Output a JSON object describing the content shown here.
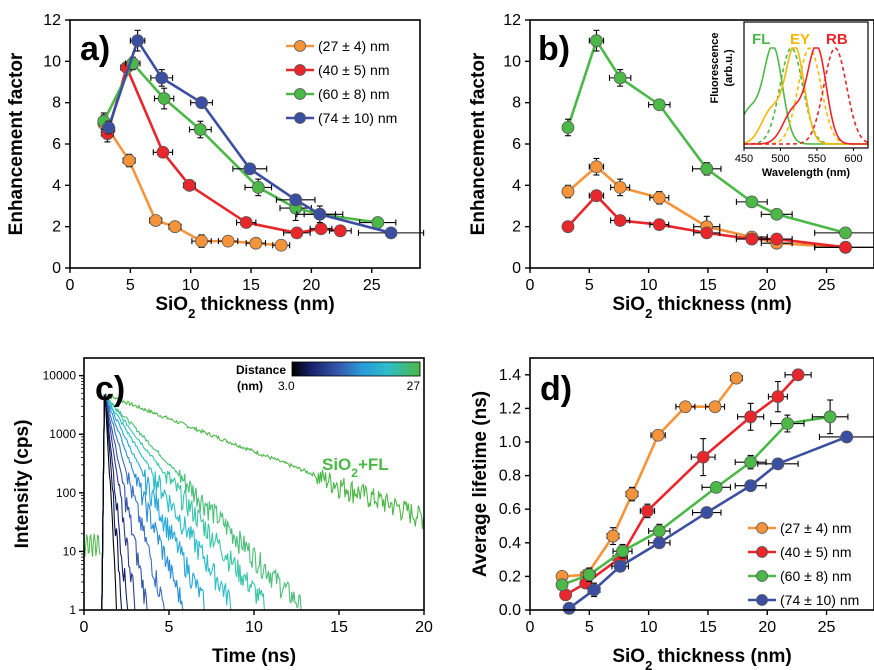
{
  "colors": {
    "orange": "#f7943a",
    "red": "#e8262b",
    "green": "#4cb848",
    "blue": "#3b4fa2"
  },
  "chart_data": [
    {
      "panel": "a)",
      "type": "line",
      "xlabel_main": "SiO",
      "xlabel_sub": "2",
      "xlabel_rest": " thickness (nm)",
      "ylabel": "Enhancement factor",
      "xlim": [
        0,
        29
      ],
      "ylim": [
        0,
        12
      ],
      "xticks": [
        0,
        5,
        10,
        15,
        20,
        25
      ],
      "yticks": [
        0,
        2,
        4,
        6,
        8,
        10,
        12
      ],
      "legend_position": "top-right",
      "series": [
        {
          "name": "(27 ± 4) nm",
          "color": "orange",
          "points": [
            [
              2.8,
              7.0,
              0.4,
              0.4
            ],
            [
              3.2,
              6.7,
              0.5,
              0.4
            ],
            [
              4.9,
              5.2,
              0.5,
              0.3
            ],
            [
              7.1,
              2.3,
              0.5,
              0.1
            ],
            [
              8.7,
              2.0,
              0.5,
              0.1
            ],
            [
              10.9,
              1.3,
              0.8,
              0.3
            ],
            [
              13.1,
              1.3,
              0.8,
              0.1
            ],
            [
              15.4,
              1.2,
              0.8,
              0.1
            ],
            [
              17.5,
              1.1,
              0.7,
              0.1
            ]
          ]
        },
        {
          "name": "(40 ± 5) nm",
          "color": "red",
          "points": [
            [
              3.1,
              6.5,
              0.5,
              0.4
            ],
            [
              4.7,
              9.7,
              0.5,
              0.2
            ],
            [
              7.7,
              5.6,
              0.8,
              0.2
            ],
            [
              9.9,
              4.0,
              0.5,
              0.1
            ],
            [
              14.6,
              2.2,
              0.8,
              0.1
            ],
            [
              18.8,
              1.7,
              1.1,
              0.1
            ],
            [
              20.8,
              1.9,
              0.9,
              0.1
            ],
            [
              22.4,
              1.8,
              0.9,
              0.1
            ]
          ]
        },
        {
          "name": "(60 ± 8) nm",
          "color": "green",
          "points": [
            [
              2.8,
              7.1,
              0.4,
              0.4
            ],
            [
              5.2,
              9.9,
              0.6,
              0.3
            ],
            [
              7.8,
              8.2,
              0.8,
              0.5
            ],
            [
              10.8,
              6.7,
              0.9,
              0.4
            ],
            [
              15.6,
              3.9,
              1.1,
              0.4
            ],
            [
              18.7,
              2.9,
              1.3,
              0.6
            ],
            [
              20.7,
              2.6,
              1.3,
              0.4
            ],
            [
              25.5,
              2.2,
              1.5,
              0.2
            ]
          ]
        },
        {
          "name": "(74 ± 10) nm",
          "color": "blue",
          "points": [
            [
              3.2,
              6.8,
              0.4,
              0.3
            ],
            [
              5.6,
              11.0,
              0.6,
              0.5
            ],
            [
              7.6,
              9.2,
              0.9,
              0.4
            ],
            [
              10.9,
              8.0,
              0.9,
              0.1
            ],
            [
              14.9,
              4.8,
              1.4,
              0.1
            ],
            [
              18.7,
              3.3,
              1.6,
              0.1
            ],
            [
              20.7,
              2.6,
              1.9,
              0.1
            ],
            [
              26.6,
              1.7,
              2.7,
              0.1
            ]
          ]
        }
      ]
    },
    {
      "panel": "b)",
      "type": "line",
      "xlabel_main": "SiO",
      "xlabel_sub": "2",
      "xlabel_rest": " thickness (nm)",
      "ylabel": "Enhancement factor",
      "xlim": [
        0,
        29
      ],
      "ylim": [
        0,
        12
      ],
      "xticks": [
        0,
        5,
        10,
        15,
        20,
        25
      ],
      "yticks": [
        0,
        2,
        4,
        6,
        8,
        10,
        12
      ],
      "series": [
        {
          "color": "green",
          "points": [
            [
              3.2,
              6.8,
              0.4,
              0.4
            ],
            [
              5.6,
              11.0,
              0.6,
              0.5
            ],
            [
              7.6,
              9.2,
              0.9,
              0.4
            ],
            [
              10.9,
              7.9,
              0.9,
              0.1
            ],
            [
              14.9,
              4.8,
              1.2,
              0.3
            ],
            [
              18.7,
              3.2,
              1.3,
              0.1
            ],
            [
              20.8,
              2.6,
              1.3,
              0.1
            ],
            [
              26.6,
              1.7,
              2.6,
              0.1
            ]
          ]
        },
        {
          "color": "orange",
          "points": [
            [
              3.2,
              3.7,
              0.4,
              0.3
            ],
            [
              5.6,
              4.9,
              0.6,
              0.4
            ],
            [
              7.6,
              3.9,
              0.8,
              0.4
            ],
            [
              10.9,
              3.4,
              0.8,
              0.3
            ],
            [
              14.9,
              2.0,
              1.1,
              0.5
            ],
            [
              18.7,
              1.5,
              1.3,
              0.1
            ],
            [
              20.8,
              1.2,
              1.3,
              0.1
            ],
            [
              26.6,
              1.0,
              2.6,
              0.1
            ]
          ]
        },
        {
          "color": "red",
          "points": [
            [
              3.2,
              2.0,
              0.4,
              0.1
            ],
            [
              5.6,
              3.5,
              0.6,
              0.2
            ],
            [
              7.6,
              2.3,
              0.8,
              0.2
            ],
            [
              10.9,
              2.1,
              0.8,
              0.1
            ],
            [
              14.9,
              1.7,
              1.1,
              0.1
            ],
            [
              18.7,
              1.4,
              1.3,
              0.1
            ],
            [
              20.8,
              1.4,
              1.3,
              0.1
            ],
            [
              26.6,
              1.0,
              2.6,
              0.1
            ]
          ]
        }
      ],
      "inset": {
        "ylabel": "Fluorescence",
        "ylabel2": "(arb.u.)",
        "xlabel": "Wavelength (nm)",
        "xlim": [
          450,
          620
        ],
        "xticks": [
          450,
          500,
          550,
          600
        ],
        "labels": [
          {
            "text": "FL",
            "color": "green"
          },
          {
            "text": "EY",
            "color": "#f5b800"
          },
          {
            "text": "RB",
            "color": "red"
          }
        ],
        "peaks": [
          {
            "name": "FL abs",
            "center": 490,
            "color": "green",
            "dashed": false
          },
          {
            "name": "FL em",
            "center": 515,
            "color": "green",
            "dashed": true
          },
          {
            "name": "EY abs",
            "center": 520,
            "color": "#f5b800",
            "dashed": false
          },
          {
            "name": "EY em",
            "center": 540,
            "color": "#f5b800",
            "dashed": true
          },
          {
            "name": "RB abs",
            "center": 550,
            "color": "red",
            "dashed": false
          },
          {
            "name": "RB em",
            "center": 575,
            "color": "red",
            "dashed": true
          }
        ]
      }
    },
    {
      "panel": "c)",
      "type": "line",
      "xlabel": "Time (ns)",
      "ylabel": "Intensity (cps)",
      "xlim": [
        0,
        20
      ],
      "ylim_log": [
        1,
        20000
      ],
      "xticks": [
        0,
        5,
        10,
        15,
        20
      ],
      "yticks": [
        1,
        10,
        100,
        1000,
        10000
      ],
      "ytick_labels": [
        "1",
        "10",
        "100",
        "1000",
        "10000"
      ],
      "colorbar": {
        "title": "Distance",
        "unit": "(nm)",
        "min_label": "3.0",
        "max_label": "27"
      },
      "reference_label_main": "SiO",
      "reference_label_sub": "2",
      "reference_label_rest": "+FL",
      "decays": [
        {
          "tau_ns": 0.08,
          "color": "#000000"
        },
        {
          "tau_ns": 0.12,
          "color": "#0b1550"
        },
        {
          "tau_ns": 0.16,
          "color": "#17226b"
        },
        {
          "tau_ns": 0.22,
          "color": "#2a3b8f"
        },
        {
          "tau_ns": 0.3,
          "color": "#3654a8"
        },
        {
          "tau_ns": 0.42,
          "color": "#3a6fc4"
        },
        {
          "tau_ns": 0.56,
          "color": "#2a8fd6"
        },
        {
          "tau_ns": 0.72,
          "color": "#28a9d9"
        },
        {
          "tau_ns": 0.92,
          "color": "#2dbdc9"
        },
        {
          "tau_ns": 1.15,
          "color": "#3cc6a8"
        },
        {
          "tau_ns": 1.4,
          "color": "#4cbf7a"
        },
        {
          "tau_ns": 3.9,
          "color": "#4cb848"
        }
      ]
    },
    {
      "panel": "d)",
      "type": "line",
      "xlabel_main": "SiO",
      "xlabel_sub": "2",
      "xlabel_rest": " thickness (nm)",
      "ylabel": "Average lifetime (ns)",
      "xlim": [
        0,
        29
      ],
      "ylim": [
        0,
        1.5
      ],
      "xticks": [
        0,
        5,
        10,
        15,
        20,
        25
      ],
      "yticks": [
        0.0,
        0.2,
        0.4,
        0.6,
        0.8,
        1.0,
        1.2,
        1.4
      ],
      "ytick_labels": [
        "0.0",
        "0.2",
        "0.4",
        "0.6",
        "0.8",
        "1.0",
        "1.2",
        "1.4"
      ],
      "legend_position": "bottom-right",
      "series": [
        {
          "name": "(27 ± 4) nm",
          "color": "orange",
          "points": [
            [
              2.7,
              0.2,
              0.3,
              0.02
            ],
            [
              4.8,
              0.21,
              0.5,
              0.02
            ],
            [
              7.0,
              0.44,
              0.5,
              0.05
            ],
            [
              8.6,
              0.69,
              0.5,
              0.04
            ],
            [
              10.8,
              1.04,
              0.6,
              0.03
            ],
            [
              13.1,
              1.21,
              0.8,
              0.03
            ],
            [
              15.6,
              1.21,
              0.8,
              0.03
            ],
            [
              17.4,
              1.38,
              0.5,
              0.02
            ]
          ]
        },
        {
          "name": "(40 ± 5) nm",
          "color": "red",
          "points": [
            [
              3.0,
              0.09,
              0.3,
              0.02
            ],
            [
              4.7,
              0.16,
              0.4,
              0.02
            ],
            [
              7.6,
              0.31,
              0.6,
              0.03
            ],
            [
              9.9,
              0.59,
              0.6,
              0.04
            ],
            [
              14.6,
              0.91,
              1.0,
              0.11
            ],
            [
              18.6,
              1.15,
              1.1,
              0.08
            ],
            [
              20.9,
              1.27,
              0.8,
              0.09
            ],
            [
              22.6,
              1.4,
              1.1,
              0.03
            ]
          ]
        },
        {
          "name": "(60 ± 8) nm",
          "color": "green",
          "points": [
            [
              2.7,
              0.15,
              0.3,
              0.02
            ],
            [
              5.0,
              0.21,
              0.5,
              0.04
            ],
            [
              7.8,
              0.35,
              0.8,
              0.04
            ],
            [
              10.9,
              0.47,
              0.9,
              0.04
            ],
            [
              15.7,
              0.73,
              1.2,
              0.03
            ],
            [
              18.6,
              0.88,
              1.3,
              0.04
            ],
            [
              21.7,
              1.11,
              1.4,
              0.05
            ],
            [
              25.3,
              1.15,
              1.5,
              0.1
            ]
          ]
        },
        {
          "name": "(74 ± 10) nm",
          "color": "blue",
          "points": [
            [
              3.3,
              0.01,
              0.3,
              0.01
            ],
            [
              5.4,
              0.12,
              0.5,
              0.04
            ],
            [
              7.6,
              0.26,
              0.7,
              0.03
            ],
            [
              10.9,
              0.4,
              0.9,
              0.02
            ],
            [
              14.9,
              0.58,
              1.2,
              0.02
            ],
            [
              18.6,
              0.74,
              1.3,
              0.03
            ],
            [
              20.9,
              0.87,
              1.7,
              0.02
            ],
            [
              26.7,
              1.03,
              2.3,
              0.03
            ]
          ]
        }
      ]
    }
  ]
}
